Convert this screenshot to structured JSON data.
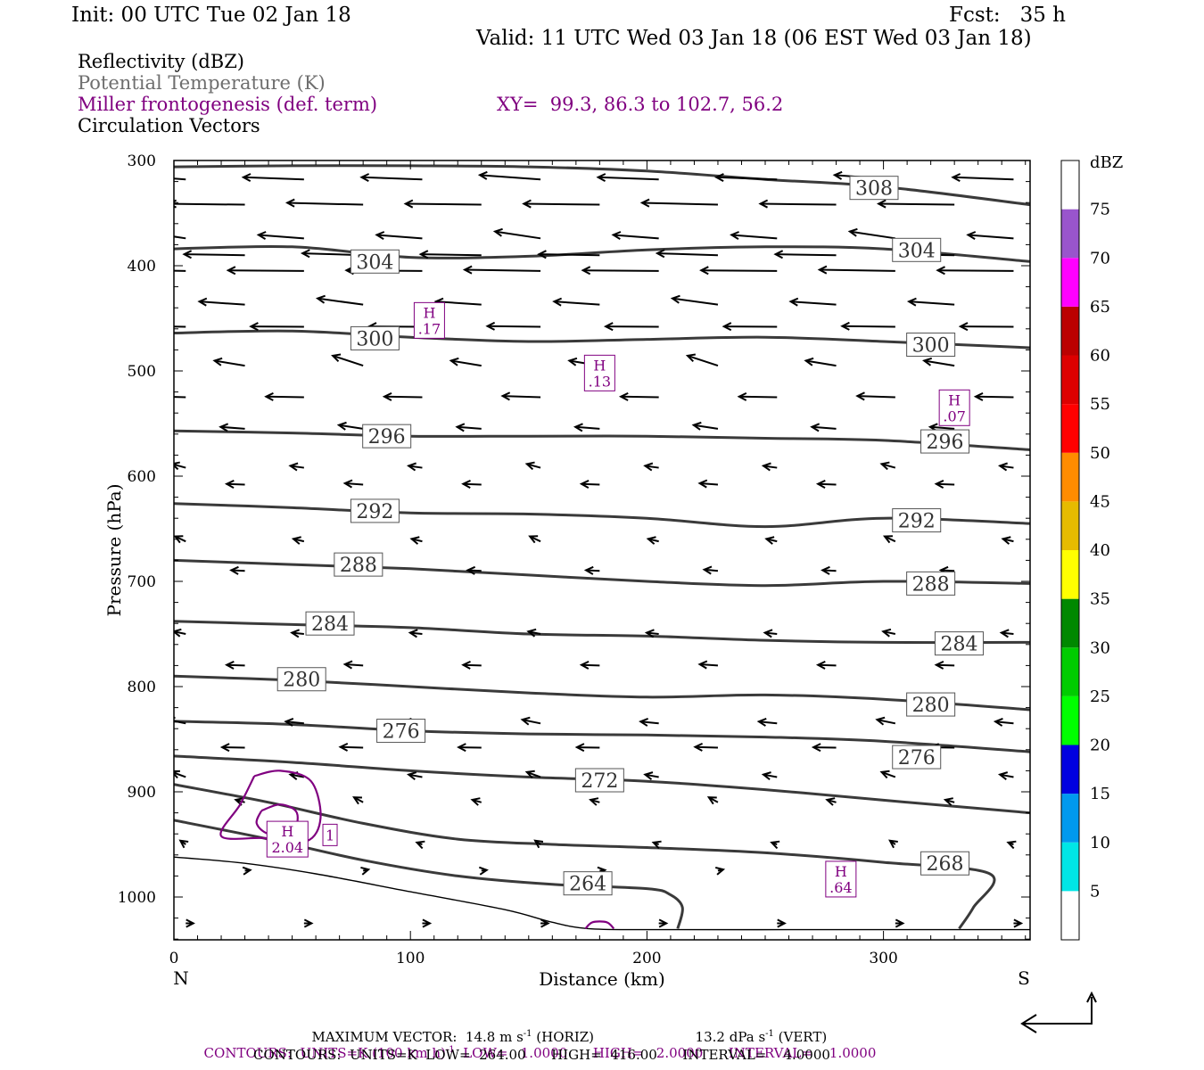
{
  "header": {
    "init": "Init: 00 UTC Tue 02 Jan 18",
    "fcst": "Fcst:   35 h",
    "valid": "Valid: 11 UTC Wed 03 Jan 18 (06 EST Wed 03 Jan 18)"
  },
  "legend": {
    "items": [
      {
        "label": "Reflectivity (dBZ)",
        "color": "#000000"
      },
      {
        "label": "Potential Temperature (K)",
        "color": "#6e6e6e"
      },
      {
        "label": "Miller frontogenesis (def. term)",
        "color": "#800080"
      },
      {
        "label": "Circulation Vectors",
        "color": "#000000"
      }
    ],
    "xy": "XY=  99.3, 86.3 to 102.7, 56.2"
  },
  "footer": {
    "max_vector": "MAXIMUM VECTOR:  14.8 m s",
    "max_vector_exp": "-1",
    "max_vector_tail": " (HORIZ)",
    "vert": "13.2 dPa s",
    "vert_exp": "-1",
    "vert_tail": " (VERT)",
    "contours_purple_a": "CONTOURS:  UNITS=K (100 km h)",
    "contours_purple_exp": "-1",
    "contours_purple_b": "  LOW=   1.0000      HIGH=   2.0000      INTERVAL=    1.0000",
    "contours_black": "CONTOURS:  UNITS=K  LOW=  264.00      HIGH=  416.00      INTERVAL=    4.0000"
  },
  "colors": {
    "theta": "#3a3a3a",
    "frontogenesis": "#800080"
  },
  "chart_data": {
    "type": "line",
    "xlabel": "Distance (km)",
    "ylabel": "Pressure (hPa)",
    "xlim": [
      0,
      362
    ],
    "ylim": [
      1040,
      300
    ],
    "y_inverted": true,
    "x_ticks": [
      "0",
      "100",
      "200",
      "300"
    ],
    "y_ticks": [
      "300",
      "400",
      "500",
      "600",
      "700",
      "800",
      "900",
      "1000"
    ],
    "x_end_labels": {
      "left": "N",
      "right": "S"
    },
    "colorbar": {
      "title": "dBZ",
      "labels": [
        "5",
        "10",
        "15",
        "20",
        "25",
        "30",
        "35",
        "40",
        "45",
        "50",
        "55",
        "60",
        "65",
        "70",
        "75"
      ],
      "colors": [
        "#ffffff",
        "#00e6e6",
        "#0099ee",
        "#0000e0",
        "#00ff00",
        "#00cc00",
        "#008800",
        "#ffff00",
        "#e6bb00",
        "#ff8c00",
        "#ff0000",
        "#dd0000",
        "#bb0000",
        "#ff00ff",
        "#9955cc",
        "#ffffff"
      ]
    },
    "theta_contours": [
      {
        "level": "308",
        "points": [
          [
            0,
            306
          ],
          [
            50,
            305
          ],
          [
            100,
            305
          ],
          [
            150,
            306
          ],
          [
            200,
            310
          ],
          [
            250,
            318
          ],
          [
            300,
            325
          ],
          [
            362,
            342
          ]
        ],
        "label_at": [
          296,
          326
        ]
      },
      {
        "level": "304",
        "points": [
          [
            0,
            384
          ],
          [
            50,
            382
          ],
          [
            100,
            392
          ],
          [
            150,
            391
          ],
          [
            200,
            385
          ],
          [
            250,
            382
          ],
          [
            300,
            384
          ],
          [
            362,
            396
          ]
        ],
        "label_at": [
          [
            85,
            396
          ],
          [
            314,
            385
          ]
        ]
      },
      {
        "level": "300",
        "points": [
          [
            0,
            464
          ],
          [
            50,
            462
          ],
          [
            100,
            468
          ],
          [
            150,
            472
          ],
          [
            200,
            470
          ],
          [
            250,
            468
          ],
          [
            300,
            472
          ],
          [
            362,
            478
          ]
        ],
        "label_at": [
          [
            85,
            469
          ],
          [
            320,
            475
          ]
        ]
      },
      {
        "level": "296",
        "points": [
          [
            0,
            557
          ],
          [
            50,
            559
          ],
          [
            100,
            562
          ],
          [
            150,
            562
          ],
          [
            200,
            562
          ],
          [
            250,
            564
          ],
          [
            300,
            566
          ],
          [
            362,
            575
          ]
        ],
        "label_at": [
          [
            90,
            562
          ],
          [
            326,
            567
          ]
        ]
      },
      {
        "level": "292",
        "points": [
          [
            0,
            626
          ],
          [
            50,
            630
          ],
          [
            100,
            635
          ],
          [
            150,
            636
          ],
          [
            200,
            640
          ],
          [
            250,
            648
          ],
          [
            300,
            640
          ],
          [
            362,
            645
          ]
        ],
        "label_at": [
          [
            85,
            633
          ],
          [
            314,
            642
          ]
        ]
      },
      {
        "level": "288",
        "points": [
          [
            0,
            680
          ],
          [
            50,
            684
          ],
          [
            100,
            688
          ],
          [
            150,
            694
          ],
          [
            200,
            700
          ],
          [
            250,
            704
          ],
          [
            300,
            700
          ],
          [
            362,
            702
          ]
        ],
        "label_at": [
          [
            78,
            684
          ],
          [
            320,
            702
          ]
        ]
      },
      {
        "level": "284",
        "points": [
          [
            0,
            738
          ],
          [
            50,
            741
          ],
          [
            100,
            744
          ],
          [
            150,
            750
          ],
          [
            200,
            752
          ],
          [
            250,
            756
          ],
          [
            300,
            758
          ],
          [
            362,
            758
          ]
        ],
        "label_at": [
          [
            66,
            740
          ],
          [
            332,
            759
          ]
        ]
      },
      {
        "level": "280",
        "points": [
          [
            0,
            790
          ],
          [
            50,
            794
          ],
          [
            100,
            800
          ],
          [
            150,
            806
          ],
          [
            200,
            810
          ],
          [
            250,
            808
          ],
          [
            300,
            812
          ],
          [
            362,
            822
          ]
        ],
        "label_at": [
          [
            54,
            793
          ],
          [
            320,
            817
          ]
        ]
      },
      {
        "level": "276",
        "points": [
          [
            0,
            833
          ],
          [
            50,
            836
          ],
          [
            100,
            842
          ],
          [
            150,
            845
          ],
          [
            200,
            846
          ],
          [
            250,
            848
          ],
          [
            300,
            852
          ],
          [
            362,
            862
          ]
        ],
        "label_at": [
          [
            96,
            842
          ],
          [
            314,
            867
          ]
        ]
      },
      {
        "level": "272",
        "points": [
          [
            0,
            866
          ],
          [
            50,
            872
          ],
          [
            100,
            880
          ],
          [
            150,
            886
          ],
          [
            200,
            890
          ],
          [
            250,
            898
          ],
          [
            300,
            908
          ],
          [
            362,
            920
          ]
        ],
        "label_at": [
          [
            180,
            889
          ]
        ]
      },
      {
        "level": "268",
        "points": [
          [
            0,
            893
          ],
          [
            40,
            910
          ],
          [
            80,
            930
          ],
          [
            120,
            945
          ],
          [
            160,
            950
          ],
          [
            200,
            953
          ],
          [
            250,
            958
          ],
          [
            300,
            967
          ],
          [
            345,
            978
          ],
          [
            338,
            1010
          ],
          [
            332,
            1030
          ]
        ],
        "label_at": [
          [
            326,
            968
          ]
        ]
      },
      {
        "level": "264",
        "points": [
          [
            0,
            927
          ],
          [
            40,
            945
          ],
          [
            80,
            965
          ],
          [
            120,
            980
          ],
          [
            160,
            988
          ],
          [
            200,
            992
          ],
          [
            210,
            998
          ],
          [
            215,
            1010
          ],
          [
            213,
            1030
          ]
        ],
        "label_at": [
          [
            175,
            987
          ]
        ]
      }
    ],
    "frontogenesis_highs": [
      {
        "label": "H",
        "value": ".17",
        "at": [
          108,
          452
        ]
      },
      {
        "label": "H",
        "value": ".13",
        "at": [
          180,
          502
        ]
      },
      {
        "label": "H",
        "value": ".07",
        "at": [
          330,
          535
        ]
      },
      {
        "label": "H",
        "value": "2.04",
        "at": [
          48,
          945
        ]
      },
      {
        "label": "H",
        "value": ".64",
        "at": [
          282,
          983
        ]
      }
    ],
    "frontogenesis_contour_labels": [
      {
        "value": "1",
        "at": [
          66,
          941
        ]
      }
    ]
  }
}
